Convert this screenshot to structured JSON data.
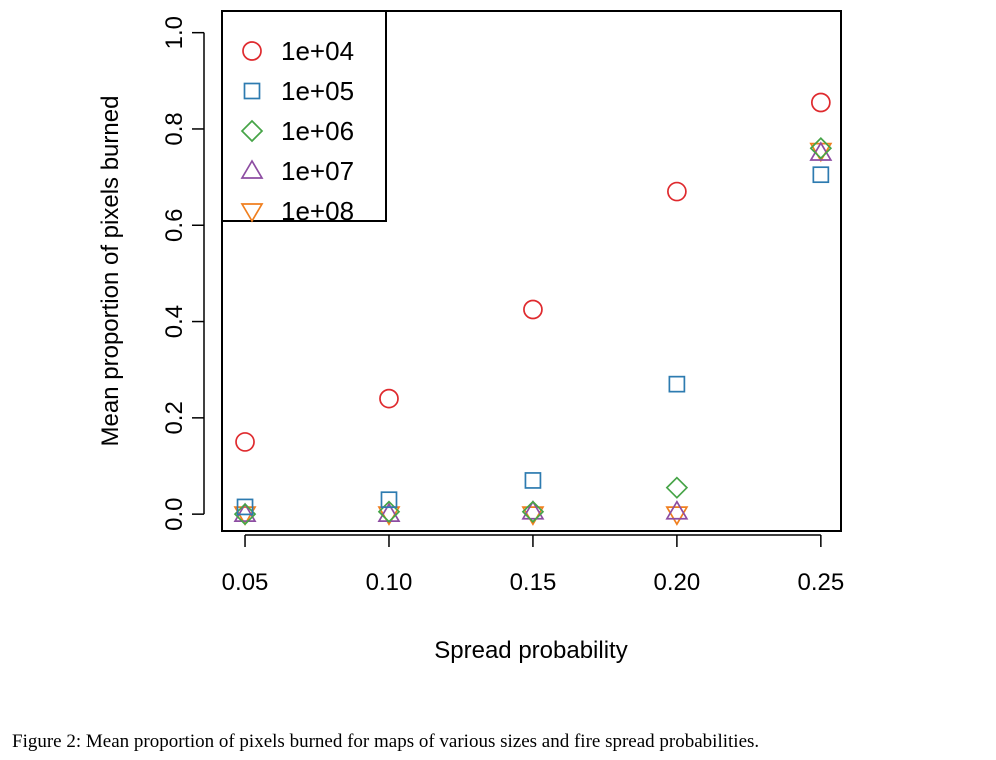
{
  "chart_data": {
    "type": "scatter",
    "xlabel": "Spread probability",
    "ylabel": "Mean proportion of pixels burned",
    "x": [
      0.05,
      0.1,
      0.15,
      0.2,
      0.25
    ],
    "x_tick_labels": [
      "0.05",
      "0.10",
      "0.15",
      "0.20",
      "0.25"
    ],
    "y_ticks": [
      0.0,
      0.2,
      0.4,
      0.6,
      0.8,
      1.0
    ],
    "y_tick_labels": [
      "0.0",
      "0.2",
      "0.4",
      "0.6",
      "0.8",
      "1.0"
    ],
    "xlim": [
      0.042,
      0.257
    ],
    "ylim": [
      -0.035,
      1.045
    ],
    "grid": false,
    "legend_position": "top-left",
    "series": [
      {
        "name": "1e+04",
        "marker": "circle",
        "color": "#df2a2e",
        "values": [
          0.15,
          0.24,
          0.425,
          0.67,
          0.855
        ]
      },
      {
        "name": "1e+05",
        "marker": "square",
        "color": "#2d7bb0",
        "values": [
          0.015,
          0.03,
          0.07,
          0.27,
          0.705
        ]
      },
      {
        "name": "1e+06",
        "marker": "diamond",
        "color": "#46a447",
        "values": [
          0.0,
          0.005,
          0.005,
          0.055,
          0.76
        ]
      },
      {
        "name": "1e+07",
        "marker": "triangle-up",
        "color": "#8d4da2",
        "values": [
          0.0,
          0.0,
          0.005,
          0.005,
          0.75
        ]
      },
      {
        "name": "1e+08",
        "marker": "triangle-down",
        "color": "#f07f1e",
        "values": [
          0.0,
          0.0,
          0.0,
          0.0,
          0.755
        ]
      }
    ]
  },
  "caption": "Figure 2: Mean proportion of pixels burned for maps of various sizes and fire spread probabilities."
}
